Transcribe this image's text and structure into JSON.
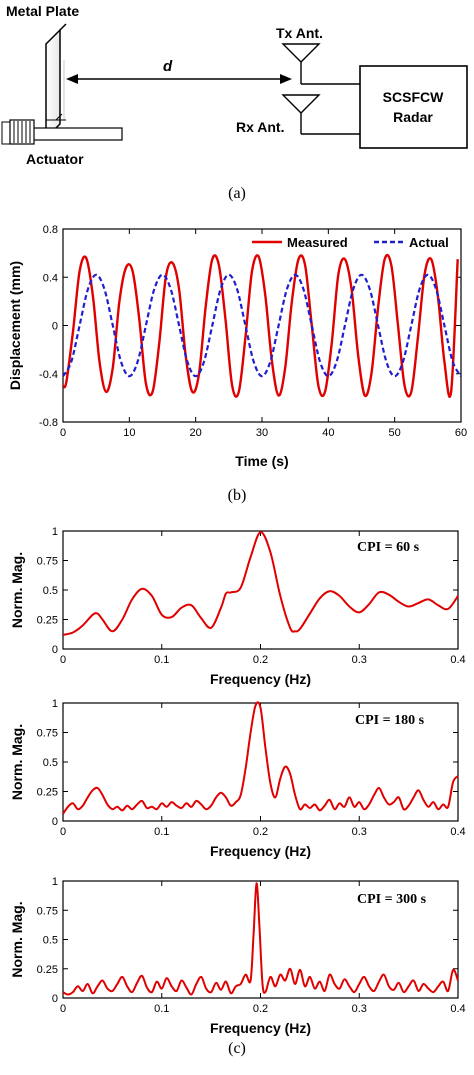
{
  "diagram": {
    "metal_plate": "Metal Plate",
    "actuator": "Actuator",
    "distance": "d",
    "tx": "Tx Ant.",
    "rx": "Rx Ant.",
    "radar_line1": "SCSFCW",
    "radar_line2": "Radar"
  },
  "captions": {
    "a": "(a)",
    "b": "(b)",
    "c": "(c)"
  },
  "colors": {
    "measured": "#e00000",
    "actual": "#1f1fd0",
    "spectrum": "#e00000"
  },
  "chart_data": [
    {
      "type": "line",
      "xlabel": "Time (s)",
      "ylabel": "Displacement (mm)",
      "xlim": [
        0,
        60
      ],
      "ylim": [
        -0.8,
        0.8
      ],
      "xticks": [
        "0",
        "10",
        "20",
        "30",
        "40",
        "50",
        "60"
      ],
      "yticks": [
        "-0.8",
        "-0.4",
        "0",
        "0.4",
        "0.8"
      ],
      "legend": "top-right",
      "series": [
        {
          "name": "Measured",
          "style": "solid",
          "x": [
            0,
            0.5,
            1.5,
            2.5,
            3.5,
            4.5,
            5.5,
            6.5,
            7.5,
            8.5,
            9.5,
            10.5,
            11.5,
            12.5,
            13.5,
            14.5,
            15.5,
            16.5,
            17.5,
            18.5,
            19.5,
            20.5,
            21.5,
            22.5,
            23.5,
            24.5,
            25.5,
            26.5,
            27.5,
            28.5,
            29.5,
            30.5,
            31.5,
            32.5,
            33.5,
            34.5,
            35.5,
            36.5,
            37.5,
            38.5,
            39.5,
            40.5,
            41.5,
            42.5,
            43.5,
            44.5,
            45.5,
            46.5,
            47.5,
            48.5,
            49.5,
            50.5,
            51.5,
            52.5,
            53.5,
            54.5,
            55.5,
            56.5,
            57.5,
            58.5,
            59.5
          ],
          "y": [
            -0.5,
            -0.47,
            -0.05,
            0.45,
            0.56,
            0.25,
            -0.3,
            -0.55,
            -0.35,
            0.2,
            0.48,
            0.45,
            0.05,
            -0.48,
            -0.55,
            -0.15,
            0.4,
            0.52,
            0.3,
            -0.25,
            -0.55,
            -0.4,
            0.15,
            0.55,
            0.5,
            0.05,
            -0.5,
            -0.55,
            -0.1,
            0.45,
            0.57,
            0.25,
            -0.3,
            -0.58,
            -0.35,
            0.2,
            0.55,
            0.5,
            0.0,
            -0.5,
            -0.55,
            -0.15,
            0.42,
            0.55,
            0.3,
            -0.25,
            -0.58,
            -0.4,
            0.15,
            0.55,
            0.5,
            0.0,
            -0.5,
            -0.55,
            -0.1,
            0.42,
            0.55,
            0.25,
            -0.3,
            -0.55,
            0.55
          ]
        },
        {
          "name": "Actual",
          "style": "dashed",
          "x": [
            0,
            1.25,
            2.5,
            3.75,
            5,
            6.25,
            7.5,
            8.75,
            10,
            11.25,
            12.5,
            13.75,
            15,
            16.25,
            17.5,
            18.75,
            20,
            21.25,
            22.5,
            23.75,
            25,
            26.25,
            27.5,
            28.75,
            30,
            31.25,
            32.5,
            33.75,
            35,
            36.25,
            37.5,
            38.75,
            40,
            41.25,
            42.5,
            43.75,
            45,
            46.25,
            47.5,
            48.75,
            50,
            51.25,
            52.5,
            53.75,
            55,
            56.25,
            57.5,
            58.75,
            60
          ],
          "y": [
            -0.42,
            -0.3,
            0.0,
            0.3,
            0.42,
            0.3,
            0.0,
            -0.3,
            -0.42,
            -0.3,
            0.0,
            0.3,
            0.42,
            0.3,
            0.0,
            -0.3,
            -0.42,
            -0.3,
            0.0,
            0.3,
            0.42,
            0.3,
            0.0,
            -0.3,
            -0.42,
            -0.3,
            0.0,
            0.3,
            0.42,
            0.3,
            0.0,
            -0.3,
            -0.42,
            -0.3,
            0.0,
            0.3,
            0.42,
            0.3,
            0.0,
            -0.3,
            -0.42,
            -0.3,
            0.0,
            0.3,
            0.42,
            0.3,
            0.0,
            -0.3,
            -0.42
          ]
        }
      ]
    },
    {
      "type": "line",
      "xlabel": "Frequency (Hz)",
      "ylabel": "Norm. Mag.",
      "annotation": "CPI = 60 s",
      "xlim": [
        0,
        0.4
      ],
      "ylim": [
        0,
        1
      ],
      "xticks": [
        "0",
        "0.1",
        "0.2",
        "0.3",
        "0.4"
      ],
      "yticks": [
        "0",
        "0.25",
        "0.5",
        "0.75",
        "1"
      ],
      "series": [
        {
          "x": [
            0,
            0.01,
            0.02,
            0.03,
            0.035,
            0.04,
            0.05,
            0.06,
            0.07,
            0.08,
            0.09,
            0.1,
            0.11,
            0.12,
            0.13,
            0.14,
            0.15,
            0.16,
            0.165,
            0.17,
            0.18,
            0.19,
            0.2,
            0.21,
            0.22,
            0.23,
            0.235,
            0.24,
            0.25,
            0.26,
            0.27,
            0.28,
            0.29,
            0.3,
            0.31,
            0.32,
            0.33,
            0.34,
            0.35,
            0.36,
            0.37,
            0.38,
            0.39,
            0.4
          ],
          "y": [
            0.12,
            0.14,
            0.2,
            0.29,
            0.3,
            0.25,
            0.15,
            0.25,
            0.42,
            0.51,
            0.45,
            0.29,
            0.27,
            0.35,
            0.37,
            0.26,
            0.18,
            0.35,
            0.47,
            0.48,
            0.52,
            0.78,
            0.99,
            0.82,
            0.45,
            0.18,
            0.15,
            0.17,
            0.3,
            0.43,
            0.49,
            0.45,
            0.36,
            0.31,
            0.38,
            0.48,
            0.46,
            0.4,
            0.36,
            0.39,
            0.42,
            0.37,
            0.34,
            0.45
          ]
        }
      ]
    },
    {
      "type": "line",
      "xlabel": "Frequency (Hz)",
      "ylabel": "Norm. Mag.",
      "annotation": "CPI = 180 s",
      "xlim": [
        0,
        0.4
      ],
      "ylim": [
        0,
        1
      ],
      "xticks": [
        "0",
        "0.1",
        "0.2",
        "0.3",
        "0.4"
      ],
      "yticks": [
        "0",
        "0.25",
        "0.5",
        "0.75",
        "1"
      ],
      "series": [
        {
          "x": [
            0,
            0.005,
            0.01,
            0.015,
            0.02,
            0.025,
            0.03,
            0.035,
            0.04,
            0.045,
            0.05,
            0.055,
            0.06,
            0.065,
            0.07,
            0.075,
            0.08,
            0.085,
            0.09,
            0.095,
            0.1,
            0.105,
            0.11,
            0.115,
            0.12,
            0.125,
            0.13,
            0.135,
            0.14,
            0.145,
            0.15,
            0.155,
            0.16,
            0.165,
            0.17,
            0.175,
            0.18,
            0.185,
            0.19,
            0.195,
            0.2,
            0.205,
            0.21,
            0.215,
            0.22,
            0.225,
            0.23,
            0.235,
            0.24,
            0.245,
            0.25,
            0.255,
            0.26,
            0.265,
            0.27,
            0.275,
            0.28,
            0.285,
            0.29,
            0.295,
            0.3,
            0.305,
            0.31,
            0.315,
            0.32,
            0.325,
            0.33,
            0.335,
            0.34,
            0.345,
            0.35,
            0.355,
            0.36,
            0.365,
            0.37,
            0.375,
            0.38,
            0.385,
            0.39,
            0.395,
            0.4
          ],
          "y": [
            0.06,
            0.12,
            0.15,
            0.1,
            0.13,
            0.2,
            0.26,
            0.28,
            0.22,
            0.14,
            0.1,
            0.12,
            0.09,
            0.13,
            0.1,
            0.14,
            0.17,
            0.11,
            0.12,
            0.1,
            0.15,
            0.12,
            0.16,
            0.13,
            0.11,
            0.15,
            0.12,
            0.17,
            0.14,
            0.1,
            0.13,
            0.2,
            0.24,
            0.2,
            0.13,
            0.16,
            0.22,
            0.45,
            0.75,
            0.98,
            0.96,
            0.62,
            0.32,
            0.2,
            0.36,
            0.46,
            0.4,
            0.22,
            0.1,
            0.14,
            0.11,
            0.14,
            0.09,
            0.13,
            0.18,
            0.1,
            0.15,
            0.12,
            0.2,
            0.12,
            0.16,
            0.1,
            0.14,
            0.22,
            0.28,
            0.2,
            0.14,
            0.16,
            0.2,
            0.1,
            0.13,
            0.2,
            0.26,
            0.18,
            0.12,
            0.16,
            0.1,
            0.14,
            0.12,
            0.33,
            0.38
          ]
        }
      ]
    },
    {
      "type": "line",
      "xlabel": "Frequency (Hz)",
      "ylabel": "Norm. Mag.",
      "annotation": "CPI = 300 s",
      "xlim": [
        0,
        0.4
      ],
      "ylim": [
        0,
        1
      ],
      "xticks": [
        "0",
        "0.1",
        "0.2",
        "0.3",
        "0.4"
      ],
      "yticks": [
        "0",
        "0.25",
        "0.5",
        "0.75",
        "1"
      ],
      "series": [
        {
          "x": [
            0,
            0.005,
            0.01,
            0.015,
            0.02,
            0.025,
            0.03,
            0.035,
            0.04,
            0.045,
            0.05,
            0.055,
            0.06,
            0.065,
            0.07,
            0.075,
            0.08,
            0.085,
            0.09,
            0.095,
            0.1,
            0.105,
            0.11,
            0.115,
            0.12,
            0.125,
            0.13,
            0.135,
            0.14,
            0.145,
            0.15,
            0.155,
            0.16,
            0.165,
            0.17,
            0.175,
            0.18,
            0.185,
            0.19,
            0.193,
            0.196,
            0.199,
            0.202,
            0.205,
            0.21,
            0.215,
            0.22,
            0.225,
            0.23,
            0.235,
            0.24,
            0.245,
            0.25,
            0.255,
            0.26,
            0.265,
            0.27,
            0.275,
            0.28,
            0.285,
            0.29,
            0.295,
            0.3,
            0.305,
            0.31,
            0.315,
            0.32,
            0.325,
            0.33,
            0.335,
            0.34,
            0.345,
            0.35,
            0.355,
            0.36,
            0.365,
            0.37,
            0.375,
            0.38,
            0.385,
            0.39,
            0.395,
            0.4
          ],
          "y": [
            0.05,
            0.03,
            0.05,
            0.1,
            0.06,
            0.12,
            0.04,
            0.1,
            0.15,
            0.08,
            0.06,
            0.12,
            0.18,
            0.1,
            0.05,
            0.13,
            0.19,
            0.09,
            0.05,
            0.14,
            0.08,
            0.17,
            0.1,
            0.06,
            0.15,
            0.09,
            0.03,
            0.12,
            0.18,
            0.08,
            0.05,
            0.13,
            0.07,
            0.14,
            0.04,
            0.1,
            0.12,
            0.2,
            0.15,
            0.55,
            0.98,
            0.6,
            0.12,
            0.05,
            0.18,
            0.1,
            0.2,
            0.15,
            0.25,
            0.12,
            0.24,
            0.1,
            0.18,
            0.08,
            0.14,
            0.06,
            0.2,
            0.12,
            0.08,
            0.16,
            0.1,
            0.05,
            0.12,
            0.18,
            0.1,
            0.06,
            0.14,
            0.2,
            0.1,
            0.07,
            0.13,
            0.05,
            0.1,
            0.15,
            0.06,
            0.12,
            0.08,
            0.05,
            0.1,
            0.14,
            0.06,
            0.24,
            0.15
          ]
        }
      ]
    }
  ]
}
